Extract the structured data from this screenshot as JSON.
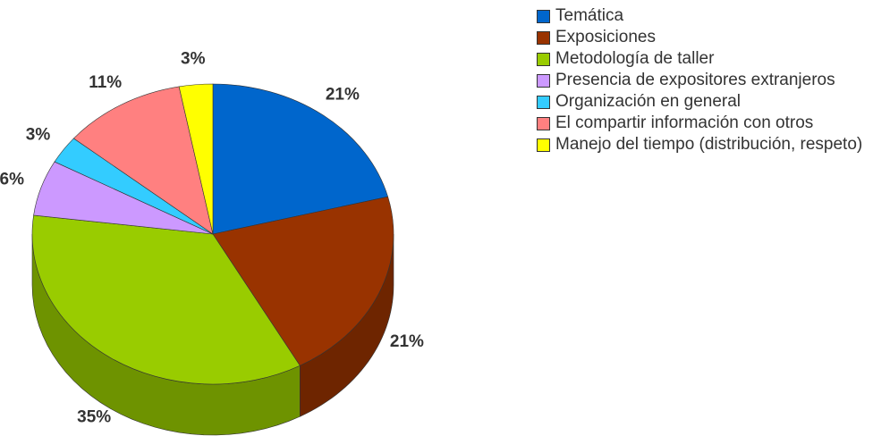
{
  "chart_data": {
    "type": "pie",
    "three_d": true,
    "categories": [
      "Temática",
      "Exposiciones",
      "Metodología de taller",
      "Presencia de expositores extranjeros",
      "Organización en general",
      "El compartir información con otros",
      "Manejo del tiempo (distribución, respeto)"
    ],
    "values": [
      21,
      21,
      35,
      6,
      3,
      11,
      3
    ],
    "value_labels": [
      "21%",
      "21%",
      "35%",
      "6%",
      "3%",
      "11%",
      "3%"
    ],
    "colors": [
      "#0066cc",
      "#993300",
      "#99cc00",
      "#cc99ff",
      "#33ccff",
      "#ff8080",
      "#ffff00"
    ],
    "legend": "right"
  }
}
